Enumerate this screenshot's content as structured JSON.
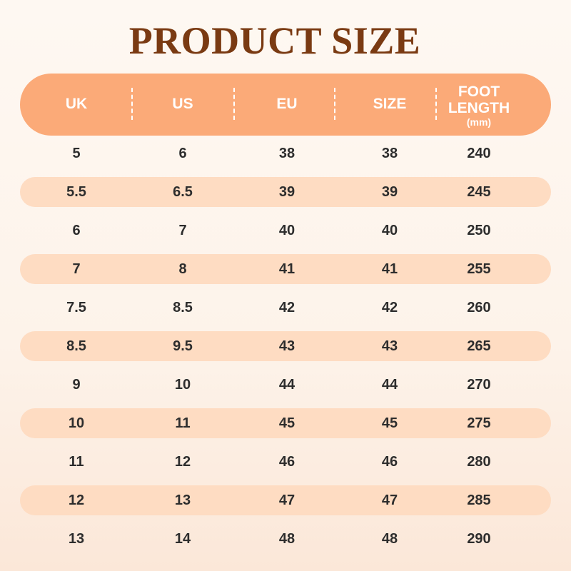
{
  "title": "PRODUCT SIZE",
  "colors": {
    "title": "#7a3a12",
    "header": "#fbaa78",
    "stripe": "#fedcc2",
    "text": "#2d2d2d"
  },
  "headers": [
    {
      "label": "UK"
    },
    {
      "label": "US"
    },
    {
      "label": "EU"
    },
    {
      "label": "SIZE"
    },
    {
      "label": "FOOT LENGTH",
      "unit": "(mm)"
    }
  ],
  "rows": [
    [
      "5",
      "6",
      "38",
      "38",
      "240"
    ],
    [
      "5.5",
      "6.5",
      "39",
      "39",
      "245"
    ],
    [
      "6",
      "7",
      "40",
      "40",
      "250"
    ],
    [
      "7",
      "8",
      "41",
      "41",
      "255"
    ],
    [
      "7.5",
      "8.5",
      "42",
      "42",
      "260"
    ],
    [
      "8.5",
      "9.5",
      "43",
      "43",
      "265"
    ],
    [
      "9",
      "10",
      "44",
      "44",
      "270"
    ],
    [
      "10",
      "11",
      "45",
      "45",
      "275"
    ],
    [
      "11",
      "12",
      "46",
      "46",
      "280"
    ],
    [
      "12",
      "13",
      "47",
      "47",
      "285"
    ],
    [
      "13",
      "14",
      "48",
      "48",
      "290"
    ]
  ]
}
